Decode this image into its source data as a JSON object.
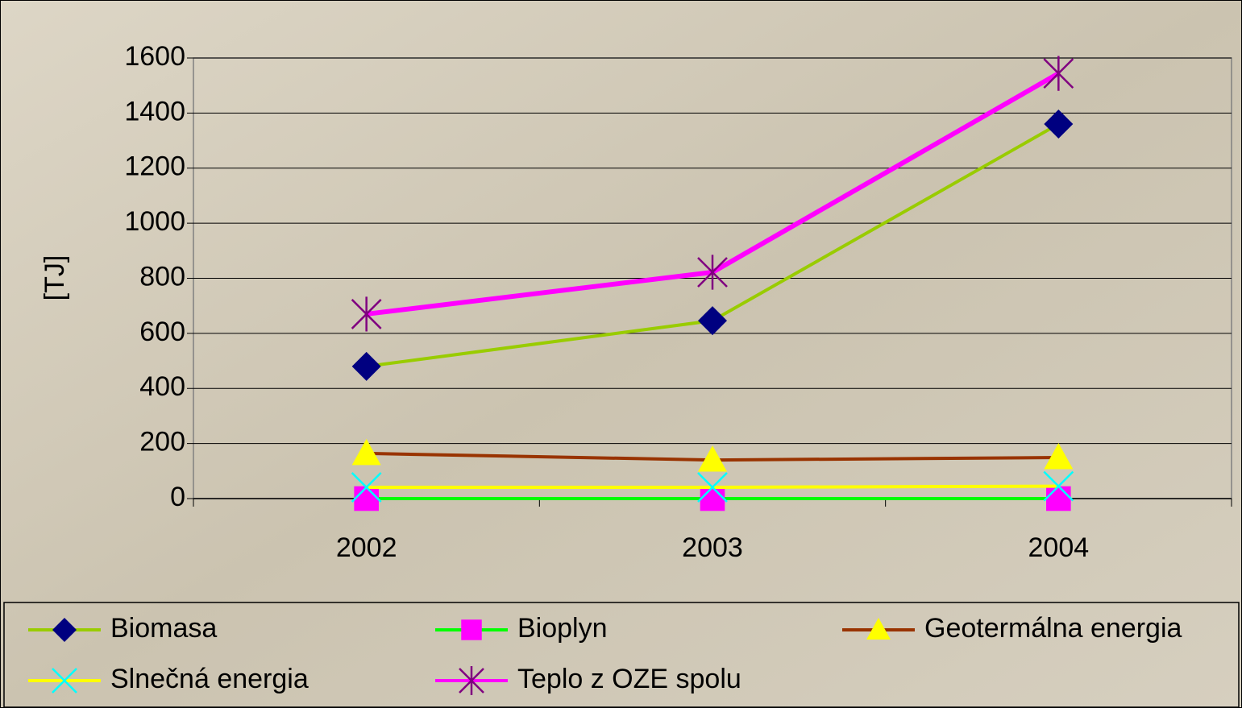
{
  "chart_data": {
    "type": "line",
    "y_label": "[TJ]",
    "categories": [
      "2002",
      "2003",
      "2004"
    ],
    "series": [
      {
        "name": "Biomasa",
        "color": "#99cc00",
        "marker": "diamond",
        "marker_color": "#000080",
        "values": [
          480,
          646,
          1360
        ]
      },
      {
        "name": "Bioplyn",
        "color": "#00ff00",
        "marker": "square",
        "marker_color": "#ff00ff",
        "values": [
          0,
          0,
          0
        ]
      },
      {
        "name": "Geotermálna energia",
        "color": "#993300",
        "marker": "triangle",
        "marker_color": "#ffff00",
        "values": [
          164,
          140,
          149
        ]
      },
      {
        "name": "Slnečná energia",
        "color": "#ffff00",
        "marker": "x",
        "marker_color": "#00ffff",
        "values": [
          41,
          41,
          45
        ]
      },
      {
        "name": "Teplo z OZE spolu",
        "color": "#ff00ff",
        "marker": "star",
        "marker_color": "#800080",
        "values": [
          670,
          822,
          1544
        ]
      }
    ],
    "ylim": [
      0,
      1600
    ],
    "yticks": [
      0,
      200,
      400,
      600,
      800,
      1000,
      1200,
      1400,
      1600
    ],
    "grid": true
  }
}
